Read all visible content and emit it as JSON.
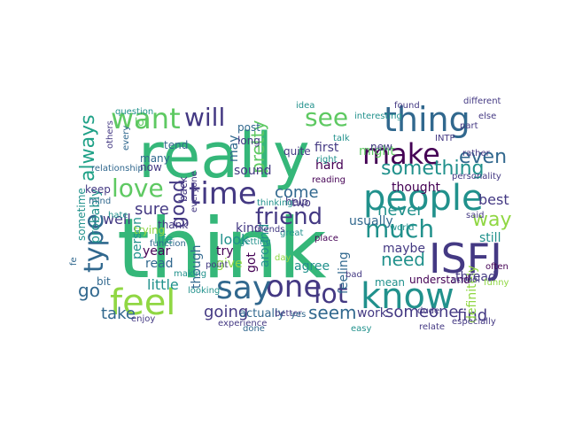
{
  "palette": {
    "green": "#35b779",
    "teal": "#21918c",
    "blue": "#31688e",
    "indigo": "#443983",
    "purple": "#440154",
    "lime": "#90d743",
    "yellow": "#fde725",
    "mint": "#5ec962",
    "cyan": "#1fa187"
  },
  "words": [
    {
      "text": "really"
    },
    {
      "text": "think"
    },
    {
      "text": "people"
    },
    {
      "text": "thing"
    },
    {
      "text": "know"
    },
    {
      "text": "time"
    },
    {
      "text": "one"
    },
    {
      "text": "feel"
    },
    {
      "text": "ISFJ"
    },
    {
      "text": "make"
    },
    {
      "text": "much"
    },
    {
      "text": "love"
    },
    {
      "text": "want"
    },
    {
      "text": "type"
    },
    {
      "text": "say"
    },
    {
      "text": "lot"
    },
    {
      "text": "see"
    },
    {
      "text": "will"
    },
    {
      "text": "friend"
    },
    {
      "text": "always"
    },
    {
      "text": "good"
    },
    {
      "text": "even"
    },
    {
      "text": "something"
    },
    {
      "text": "way"
    },
    {
      "text": "pretty"
    },
    {
      "text": "going"
    },
    {
      "text": "someone"
    },
    {
      "text": "need"
    },
    {
      "text": "sure"
    },
    {
      "text": "never"
    },
    {
      "text": "come"
    },
    {
      "text": "take"
    },
    {
      "text": "look"
    },
    {
      "text": "seem"
    },
    {
      "text": "find"
    },
    {
      "text": "thought"
    },
    {
      "text": "best"
    },
    {
      "text": "well"
    },
    {
      "text": "kind"
    },
    {
      "text": "probably"
    },
    {
      "text": "person"
    },
    {
      "text": "go"
    },
    {
      "text": "usually"
    },
    {
      "text": "feeling"
    },
    {
      "text": "mean"
    },
    {
      "text": "maybe"
    },
    {
      "text": "still"
    },
    {
      "text": "actually"
    },
    {
      "text": "work"
    },
    {
      "text": "little"
    },
    {
      "text": "year"
    },
    {
      "text": "read"
    },
    {
      "text": "though"
    },
    {
      "text": "try"
    },
    {
      "text": "got"
    },
    {
      "text": "around"
    },
    {
      "text": "agree"
    },
    {
      "text": "definitely"
    },
    {
      "text": "thread"
    },
    {
      "text": "understand"
    },
    {
      "text": "back"
    },
    {
      "text": "life"
    },
    {
      "text": "thank"
    },
    {
      "text": "first"
    },
    {
      "text": "might"
    },
    {
      "text": "two"
    },
    {
      "text": "help"
    },
    {
      "text": "sound"
    },
    {
      "text": "hard"
    },
    {
      "text": "may"
    },
    {
      "text": "many"
    },
    {
      "text": "now"
    },
    {
      "text": "long"
    },
    {
      "text": "post"
    },
    {
      "text": "others"
    },
    {
      "text": "sometime"
    },
    {
      "text": "tend"
    },
    {
      "text": "quite"
    },
    {
      "text": "new"
    },
    {
      "text": "keep"
    },
    {
      "text": "give"
    },
    {
      "text": "trying"
    },
    {
      "text": "lol"
    },
    {
      "text": "bit"
    },
    {
      "text": "school"
    },
    {
      "text": "right"
    },
    {
      "text": "thinking"
    },
    {
      "text": "different"
    },
    {
      "text": "INTP"
    },
    {
      "text": "every"
    },
    {
      "text": "relationship"
    },
    {
      "text": "mind"
    },
    {
      "text": "hate"
    },
    {
      "text": "said"
    },
    {
      "text": "idea"
    },
    {
      "text": "day"
    },
    {
      "text": "great"
    },
    {
      "text": "enjoy"
    },
    {
      "text": "better"
    },
    {
      "text": "bad"
    },
    {
      "text": "reading"
    },
    {
      "text": "talk"
    },
    {
      "text": "easy"
    },
    {
      "text": "function"
    },
    {
      "text": "getting"
    },
    {
      "text": "everyone"
    },
    {
      "text": "especially"
    },
    {
      "text": "question"
    },
    {
      "text": "relate"
    },
    {
      "text": "often"
    },
    {
      "text": "rather"
    },
    {
      "text": "dude"
    },
    {
      "text": "fe"
    },
    {
      "text": "experience"
    },
    {
      "text": "part"
    },
    {
      "text": "world"
    },
    {
      "text": "personality"
    },
    {
      "text": "found"
    },
    {
      "text": "friends"
    },
    {
      "text": "looking"
    },
    {
      "text": "yes"
    },
    {
      "text": "place"
    },
    {
      "text": "interesting"
    },
    {
      "text": "point"
    },
    {
      "text": "else"
    },
    {
      "text": "funny"
    },
    {
      "text": "making"
    },
    {
      "text": "done"
    },
    {
      "text": "close"
    },
    {
      "text": "together"
    },
    {
      "text": "cool"
    },
    {
      "text": "ever"
    }
  ]
}
